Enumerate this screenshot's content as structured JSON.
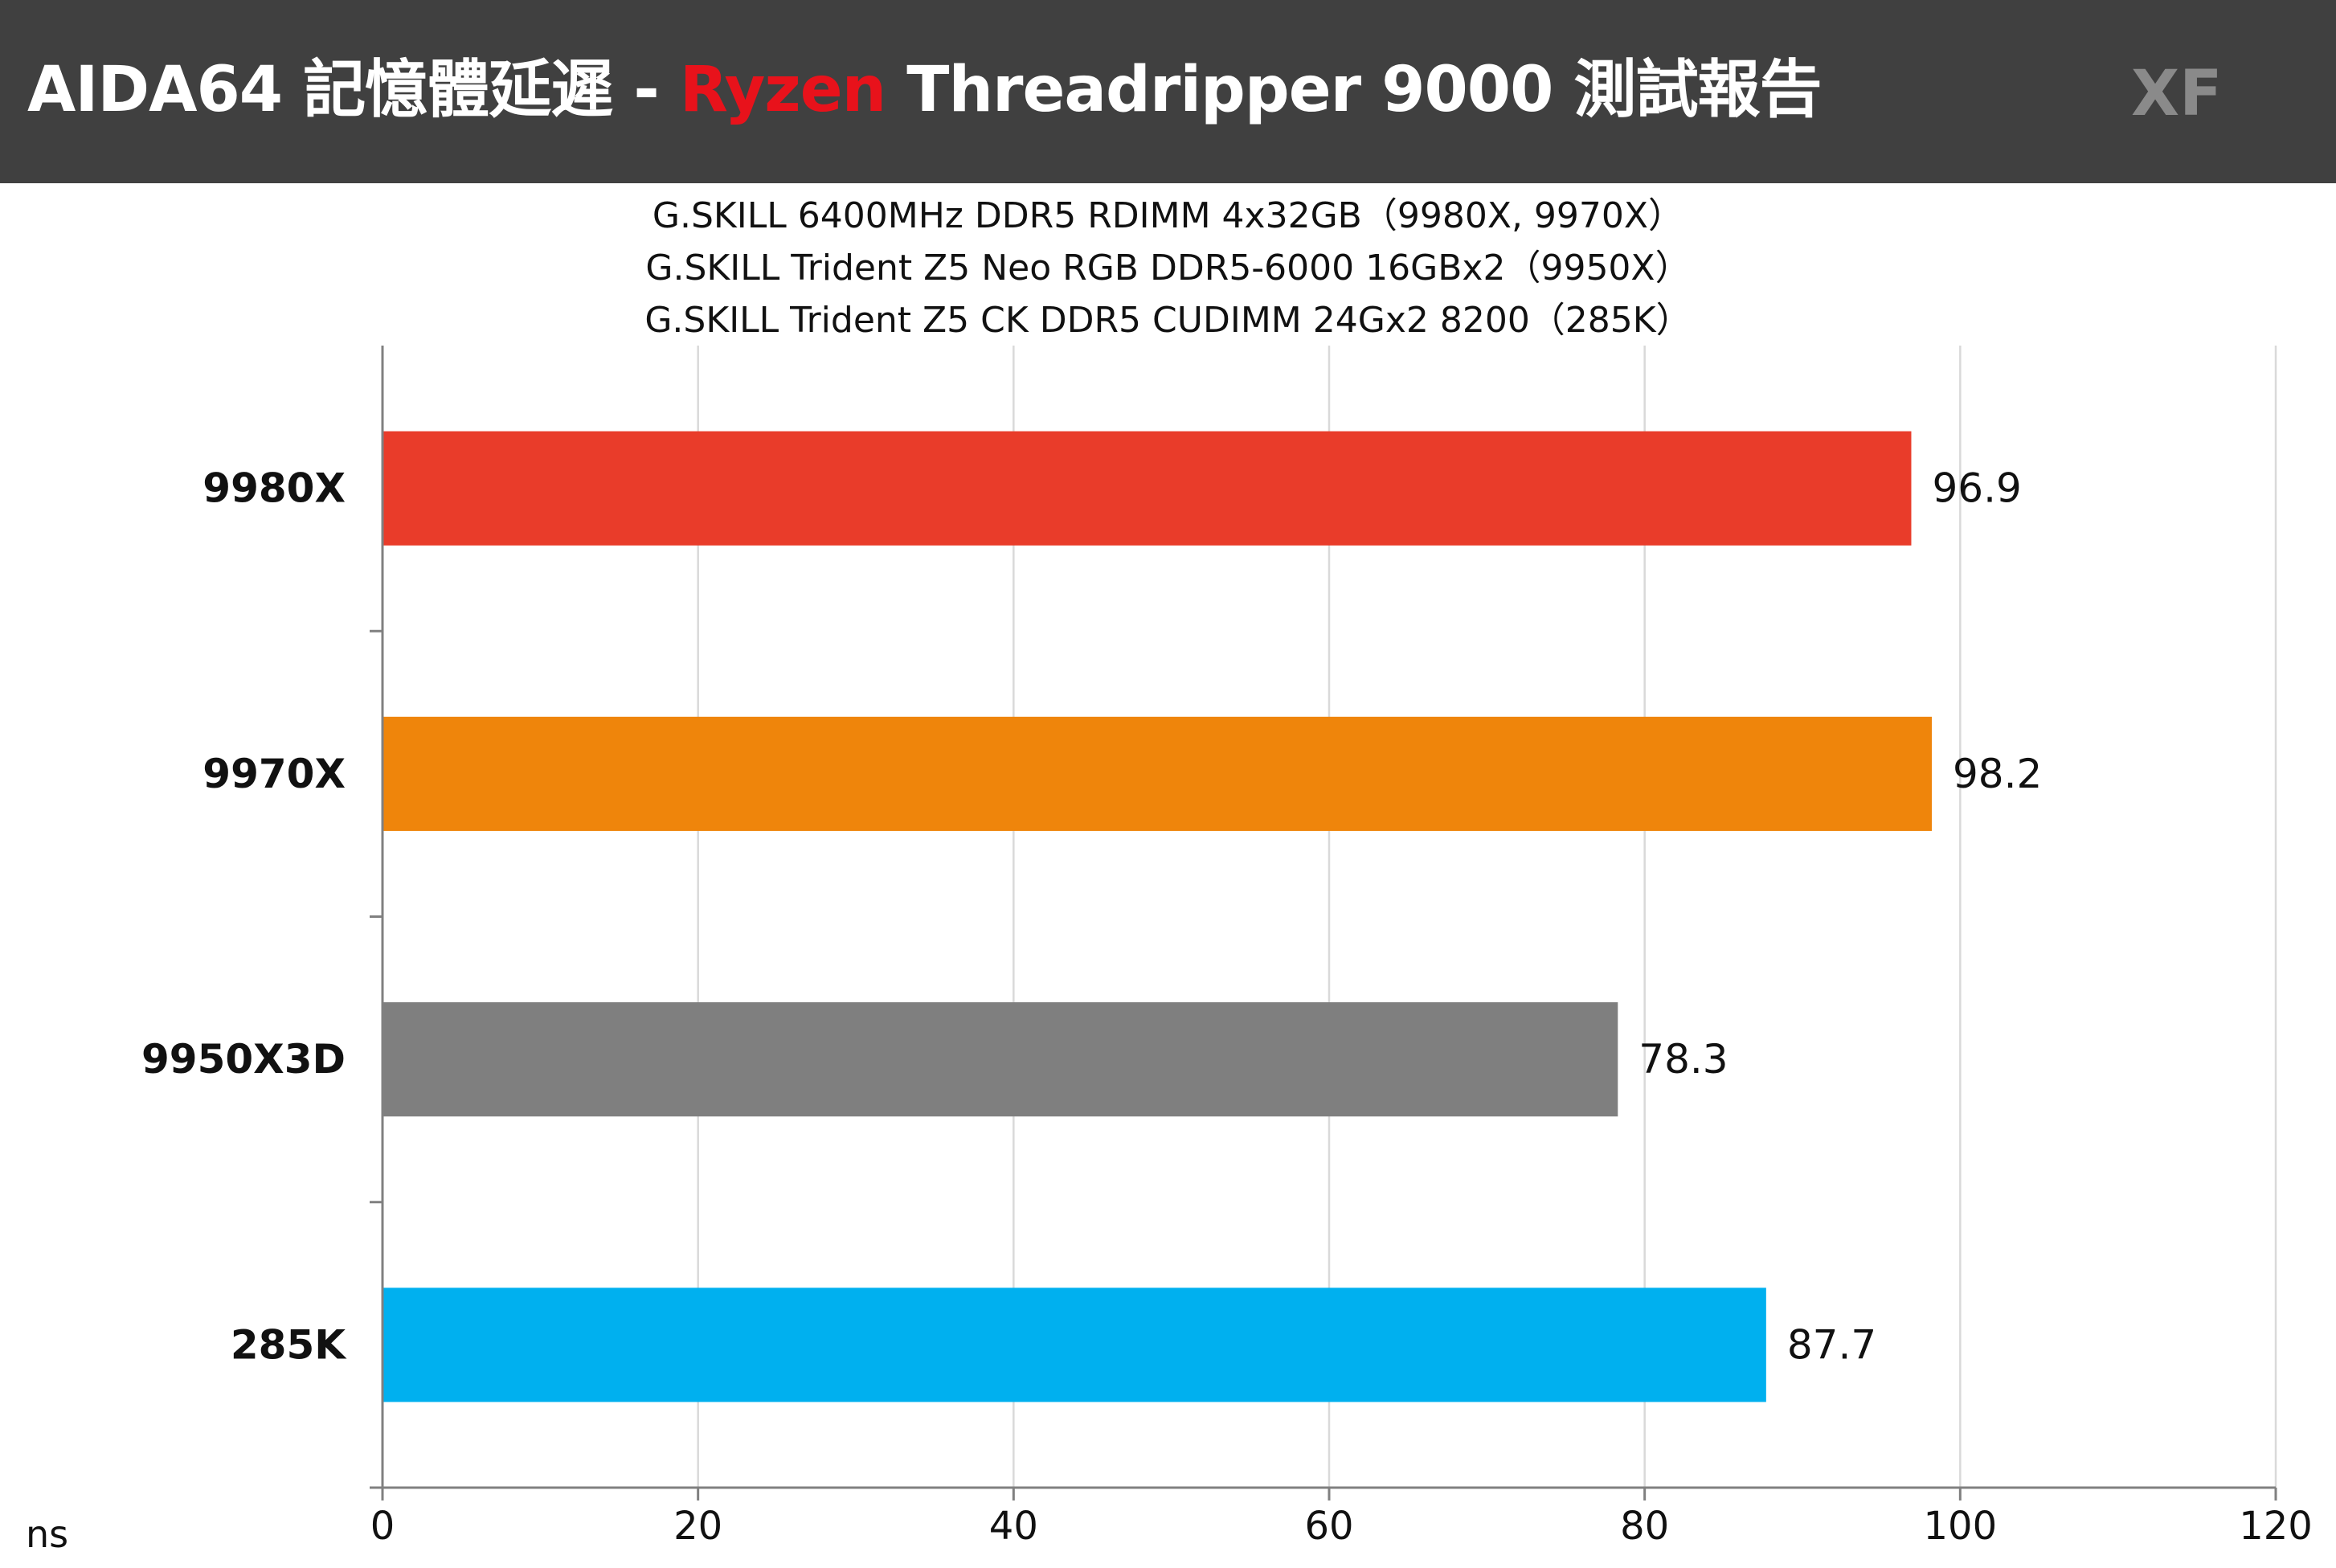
{
  "header": {
    "title_prefix": "AIDA64 記憶體延遲 - ",
    "title_accent": "Ryzen",
    "title_suffix": " Threadripper 9000  測試報告",
    "brand": "XF"
  },
  "subtitles": [
    "G.SKILL  6400MHz DDR5 RDIMM 4x32GB（9980X, 9970X）",
    "G.SKILL Trident Z5 Neo RGB DDR5-6000 16GBx2（9950X）",
    "G.SKILL Trident Z5 CK DDR5 CUDIMM 24Gx2 8200（285K）"
  ],
  "unit": "ns",
  "colors": {
    "header_bg": "#404040",
    "accent": "#e8121b",
    "grid": "#d9d9d9",
    "axis": "#808080"
  },
  "chart_data": {
    "type": "bar",
    "orientation": "horizontal",
    "categories": [
      "9980X",
      "9970X",
      "9950X3D",
      "285K"
    ],
    "values": [
      96.9,
      98.2,
      78.3,
      87.7
    ],
    "value_labels": [
      "96.9",
      "98.2",
      "78.3",
      "87.7"
    ],
    "bar_colors": [
      "#e93c2a",
      "#ef850b",
      "#7f7f7f",
      "#00b0ef"
    ],
    "xlim": [
      0,
      120
    ],
    "xticks": [
      0,
      20,
      40,
      60,
      80,
      100,
      120
    ],
    "xtick_labels": [
      "0",
      "20",
      "40",
      "60",
      "80",
      "100",
      "120"
    ],
    "grid": true,
    "legend": "none"
  }
}
